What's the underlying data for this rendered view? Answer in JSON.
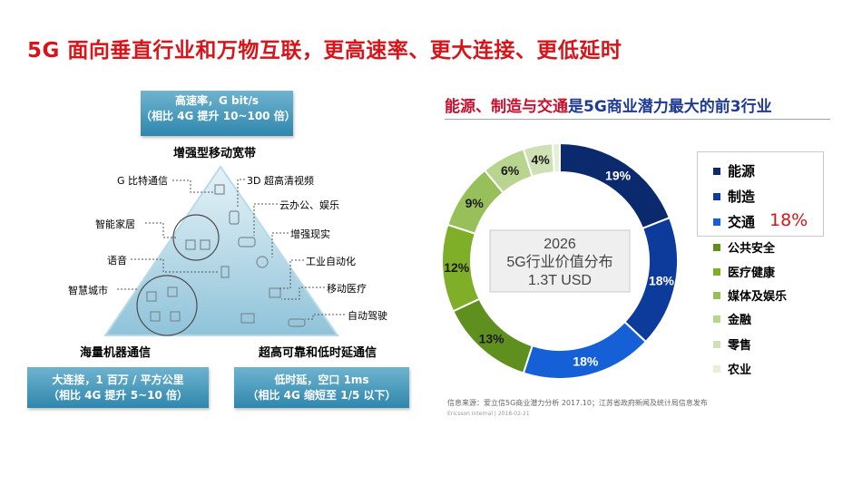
{
  "title": "5G 面向垂直行业和万物互联，更高速率、更大连接、更低延时",
  "triangle": {
    "top_box": {
      "line1": "高速率，G bit/s",
      "line2": "（相比 4G 提升 10~100 倍）"
    },
    "top_label": "增强型移动宽带",
    "left_label": "海量机器通信",
    "right_label": "超高可靠和低时延通信",
    "left_box": {
      "line1": "大连接，1 百万 / 平方公里",
      "line2": "（相比 4G 提升 5~10 倍）"
    },
    "right_box": {
      "line1": "低时延，空口 1ms",
      "line2": "（相比 4G 缩短至 1/5 以下）"
    },
    "callouts": {
      "g_bit": "G 比特通信",
      "video_3d": "3D 超高清视频",
      "cloud": "云办公、娱乐",
      "smart_home": "智能家居",
      "ar": "增强现实",
      "voice": "语音",
      "industrial": "工业自动化",
      "smart_city": "智慧城市",
      "medical": "移动医疗",
      "auto_drive": "自动驾驶"
    }
  },
  "right_title": {
    "part1": "能源、制造与交通",
    "part2": "是5G商业潜力最大的前3行业"
  },
  "chart_data": {
    "type": "pie",
    "subtype": "donut",
    "center_text": {
      "line1": "2026",
      "line2": "5G行业价值分布",
      "line3": "1.3T USD"
    },
    "categories": [
      "能源",
      "制造",
      "交通",
      "公共安全",
      "医疗健康",
      "媒体及娱乐",
      "金融",
      "零售",
      "农业"
    ],
    "values": [
      19,
      18,
      18,
      13,
      12,
      9,
      6,
      4,
      1
    ],
    "labels": [
      "19%",
      "18%",
      "18%",
      "13%",
      "12%",
      "9%",
      "6%",
      "4%",
      ""
    ],
    "colors": [
      "#0b2a6e",
      "#0d3b9c",
      "#1560d6",
      "#5f8f1e",
      "#7fae28",
      "#98c05a",
      "#b9d48e",
      "#cfe0b5",
      "#e6efd8"
    ],
    "highlight": "18%"
  },
  "source": "信息来源：爱立信5G商业潜力分析 2017.10；江苏省政府新闻及统计局信息发布",
  "internal": "Ericsson Internal | 2018-02-21"
}
